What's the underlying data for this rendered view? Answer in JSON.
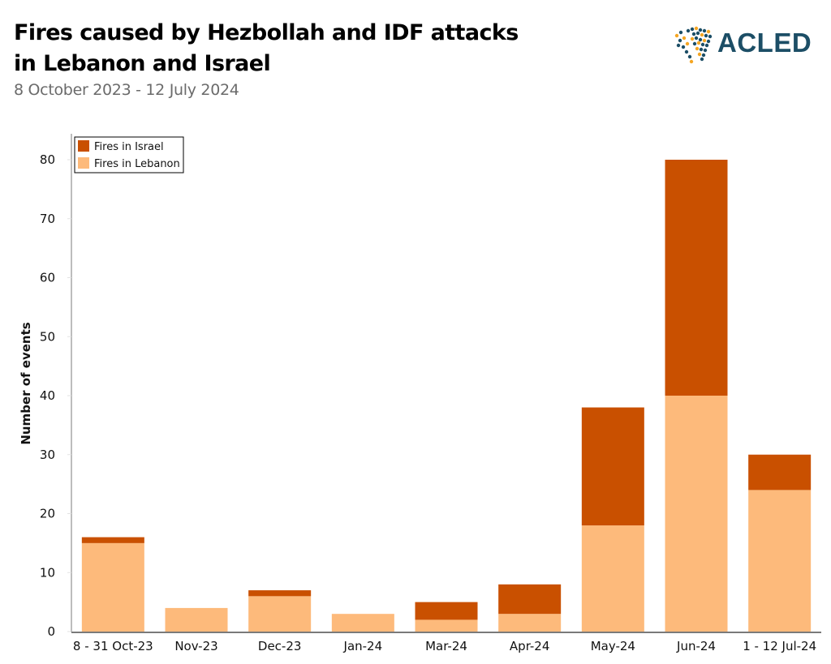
{
  "header": {
    "title_line1": "Fires caused by Hezbollah and IDF attacks",
    "title_line2": "in Lebanon and Israel",
    "subtitle": "8 October 2023 - 12 July 2024",
    "logo_text": "ACLED"
  },
  "colors": {
    "israel": "#c95000",
    "lebanon": "#fdba7b",
    "axis": "#bdbdbd",
    "baseline": "#7a7a7a",
    "logo": "#1c4e66",
    "logo_accent": "#f5a623"
  },
  "chart_data": {
    "type": "bar",
    "stacked": true,
    "title": "Fires caused by Hezbollah and IDF attacks in Lebanon and Israel",
    "subtitle": "8 October 2023 - 12 July 2024",
    "xlabel": "",
    "ylabel": "Number of events",
    "ylim": [
      0,
      80
    ],
    "yticks": [
      0,
      10,
      20,
      30,
      40,
      50,
      60,
      70,
      80
    ],
    "grid": false,
    "legend_position": "top-left",
    "categories": [
      "8 - 31 Oct-23",
      "Nov-23",
      "Dec-23",
      "Jan-24",
      "Mar-24",
      "Apr-24",
      "May-24",
      "Jun-24",
      "1 - 12 Jul-24"
    ],
    "series": [
      {
        "name": "Fires in Lebanon",
        "color": "#fdba7b",
        "values": [
          15,
          4,
          6,
          3,
          2,
          3,
          18,
          40,
          24
        ]
      },
      {
        "name": "Fires in Israel",
        "color": "#c95000",
        "values": [
          1,
          0,
          1,
          0,
          3,
          5,
          20,
          40,
          6
        ]
      }
    ],
    "legend": [
      "Fires in Israel",
      "Fires in Lebanon"
    ]
  }
}
